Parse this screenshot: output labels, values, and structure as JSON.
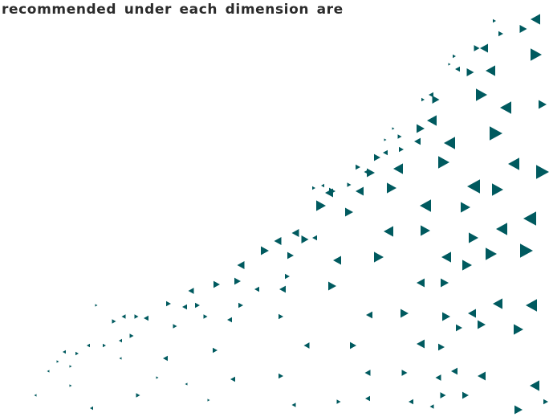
{
  "text_fragment": "recommended under each dimension are",
  "colors": {
    "text": "#2b2b2b",
    "accent": "#005a5f"
  },
  "decoration": "triangle-pattern"
}
